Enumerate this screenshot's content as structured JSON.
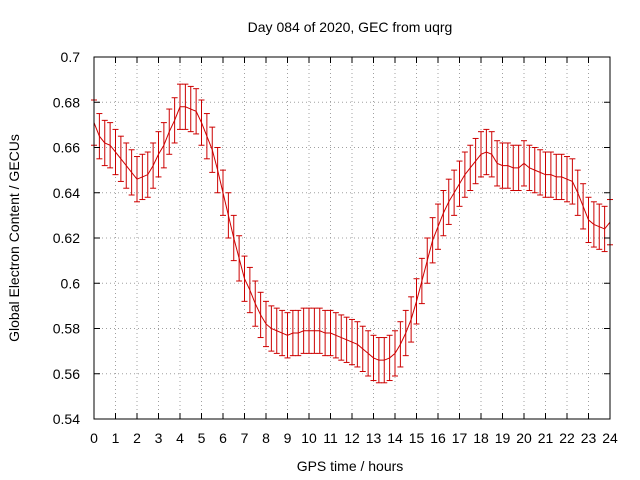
{
  "chart_data": {
    "type": "line",
    "title": "Day 084 of 2020, GEC from uqrg",
    "xlabel": "GPS time / hours",
    "ylabel": "Global Electron Content / GECUs",
    "xlim": [
      0,
      24
    ],
    "ylim": [
      0.54,
      0.7
    ],
    "grid": true,
    "xticks": [
      "0",
      "1",
      "2",
      "3",
      "4",
      "5",
      "6",
      "7",
      "8",
      "9",
      "10",
      "11",
      "12",
      "13",
      "14",
      "15",
      "16",
      "17",
      "18",
      "19",
      "20",
      "21",
      "22",
      "23",
      "24"
    ],
    "yticks": [
      "0.54",
      "0.56",
      "0.58",
      "0.6",
      "0.62",
      "0.64",
      "0.66",
      "0.68",
      "0.7"
    ],
    "series": [
      {
        "name": "GEC",
        "color": "#cc0000",
        "error": 0.01,
        "x": [
          0,
          0.25,
          0.5,
          0.75,
          1,
          1.25,
          1.5,
          1.75,
          2,
          2.25,
          2.5,
          2.75,
          3,
          3.25,
          3.5,
          3.75,
          4,
          4.25,
          4.5,
          4.75,
          5,
          5.25,
          5.5,
          5.75,
          6,
          6.25,
          6.5,
          6.75,
          7,
          7.25,
          7.5,
          7.75,
          8,
          8.25,
          8.5,
          8.75,
          9,
          9.25,
          9.5,
          9.75,
          10,
          10.25,
          10.5,
          10.75,
          11,
          11.25,
          11.5,
          11.75,
          12,
          12.25,
          12.5,
          12.75,
          13,
          13.25,
          13.5,
          13.75,
          14,
          14.25,
          14.5,
          14.75,
          15,
          15.25,
          15.5,
          15.75,
          16,
          16.25,
          16.5,
          16.75,
          17,
          17.25,
          17.5,
          17.75,
          18,
          18.25,
          18.5,
          18.75,
          19,
          19.25,
          19.5,
          19.75,
          20,
          20.25,
          20.5,
          20.75,
          21,
          21.25,
          21.5,
          21.75,
          22,
          22.25,
          22.5,
          22.75,
          23,
          23.25,
          23.5,
          23.75,
          24
        ],
        "values": [
          0.671,
          0.665,
          0.662,
          0.661,
          0.658,
          0.655,
          0.652,
          0.649,
          0.646,
          0.647,
          0.648,
          0.652,
          0.657,
          0.661,
          0.667,
          0.672,
          0.678,
          0.678,
          0.677,
          0.676,
          0.671,
          0.665,
          0.659,
          0.65,
          0.64,
          0.63,
          0.62,
          0.611,
          0.602,
          0.597,
          0.591,
          0.586,
          0.582,
          0.58,
          0.579,
          0.578,
          0.577,
          0.578,
          0.578,
          0.579,
          0.579,
          0.579,
          0.579,
          0.578,
          0.578,
          0.577,
          0.576,
          0.575,
          0.574,
          0.573,
          0.571,
          0.569,
          0.567,
          0.566,
          0.566,
          0.567,
          0.569,
          0.573,
          0.578,
          0.584,
          0.592,
          0.601,
          0.61,
          0.619,
          0.625,
          0.631,
          0.636,
          0.64,
          0.644,
          0.648,
          0.651,
          0.654,
          0.657,
          0.658,
          0.657,
          0.653,
          0.652,
          0.652,
          0.651,
          0.651,
          0.653,
          0.651,
          0.65,
          0.649,
          0.648,
          0.648,
          0.647,
          0.647,
          0.646,
          0.645,
          0.64,
          0.634,
          0.628,
          0.626,
          0.625,
          0.624,
          0.627
        ]
      }
    ]
  }
}
